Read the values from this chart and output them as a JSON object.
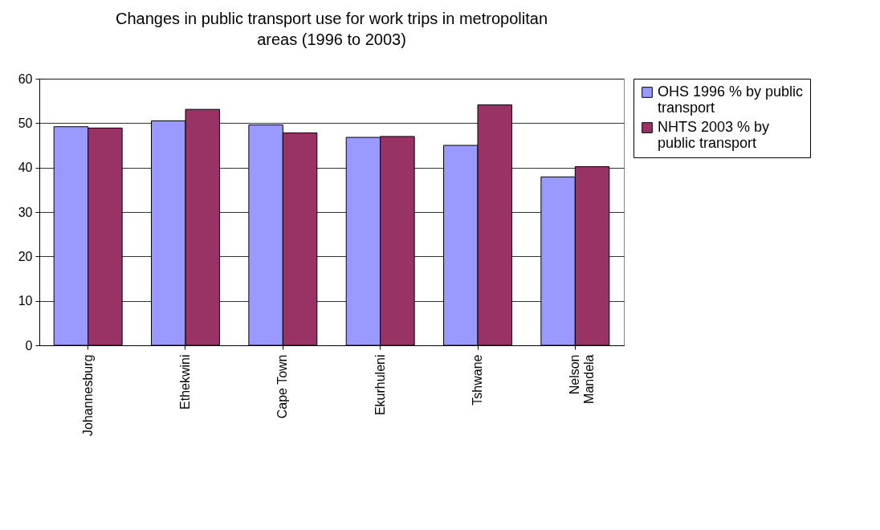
{
  "chart_data": {
    "type": "bar",
    "title": "Changes in public transport use for work trips in metropolitan areas (1996 to 2003)",
    "categories": [
      "Johannesburg",
      "Ethekwini",
      "Cape Town",
      "Ekurhuleni",
      "Tshwane",
      "Nelson Mandela"
    ],
    "series": [
      {
        "name": "OHS 1996 % by public transport",
        "color": "#9999ff",
        "values": [
          49.2,
          50.5,
          49.6,
          46.8,
          45.0,
          37.9
        ]
      },
      {
        "name": "NHTS 2003 % by public transport",
        "color": "#993366",
        "values": [
          48.9,
          53.1,
          47.8,
          47.0,
          54.1,
          40.2
        ]
      }
    ],
    "ylim": [
      0,
      60
    ],
    "yticks": [
      0,
      10,
      20,
      30,
      40,
      50,
      60
    ],
    "grid": "y",
    "legend": "right"
  }
}
